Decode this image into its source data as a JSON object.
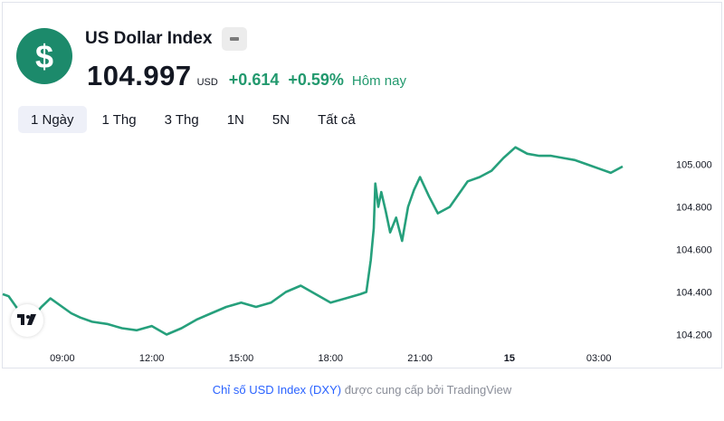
{
  "header": {
    "title": "US Dollar Index",
    "price": "104.997",
    "currency": "USD",
    "change": "+0.614",
    "change_pct": "+0.59%",
    "period_label": "Hôm nay",
    "logo_icon": "dollar-icon",
    "more_icon": "minus-icon"
  },
  "tabs": [
    {
      "label": "1 Ngày",
      "active": true
    },
    {
      "label": "1 Thg",
      "active": false
    },
    {
      "label": "3 Thg",
      "active": false
    },
    {
      "label": "1N",
      "active": false
    },
    {
      "label": "5N",
      "active": false
    },
    {
      "label": "Tất cả",
      "active": false
    }
  ],
  "colors": {
    "line": "#26a07c",
    "accent": "#1c8a6b",
    "positive": "#22996e",
    "link": "#2962ff"
  },
  "footer": {
    "link_text": "Chỉ số USD Index (DXY)",
    "suffix_text": " được cung cấp bởi TradingView"
  },
  "chart_data": {
    "type": "line",
    "x_ticks": [
      "09:00",
      "12:00",
      "15:00",
      "18:00",
      "21:00",
      "15",
      "03:00"
    ],
    "y_ticks": [
      "104.200",
      "104.400",
      "104.600",
      "104.800",
      "105.000"
    ],
    "ylim": [
      104.13,
      105.1
    ],
    "grid": false,
    "series": [
      {
        "x": [
          7.0,
          7.2,
          7.5,
          7.8,
          8.0,
          8.3,
          8.6,
          9.0,
          9.3,
          9.6,
          10.0,
          10.5,
          11.0,
          11.5,
          12.0,
          12.5,
          13.0,
          13.5,
          14.0,
          14.5,
          15.0,
          15.5,
          16.0,
          16.5,
          17.0,
          17.5,
          18.0,
          18.5,
          19.0,
          19.2,
          19.35,
          19.45,
          19.5,
          19.55,
          19.6,
          19.7,
          19.85,
          20.0,
          20.2,
          20.4,
          20.6,
          20.8,
          21.0,
          21.3,
          21.6,
          22.0,
          22.3,
          22.6,
          23.0,
          23.4,
          23.8,
          24.2,
          24.6,
          25.0,
          25.4,
          25.8,
          26.2,
          26.6,
          27.0,
          27.4,
          27.8
        ],
        "values": [
          104.39,
          104.38,
          104.32,
          104.3,
          104.28,
          104.33,
          104.37,
          104.33,
          104.3,
          104.28,
          104.26,
          104.25,
          104.23,
          104.22,
          104.24,
          104.2,
          104.23,
          104.27,
          104.3,
          104.33,
          104.35,
          104.33,
          104.35,
          104.4,
          104.43,
          104.39,
          104.35,
          104.37,
          104.39,
          104.4,
          104.55,
          104.7,
          104.91,
          104.86,
          104.8,
          104.87,
          104.78,
          104.68,
          104.75,
          104.64,
          104.8,
          104.88,
          104.94,
          104.85,
          104.77,
          104.8,
          104.86,
          104.92,
          104.94,
          104.97,
          105.03,
          105.08,
          105.05,
          105.04,
          105.04,
          105.03,
          105.02,
          105.0,
          104.98,
          104.96,
          104.99
        ]
      }
    ]
  }
}
